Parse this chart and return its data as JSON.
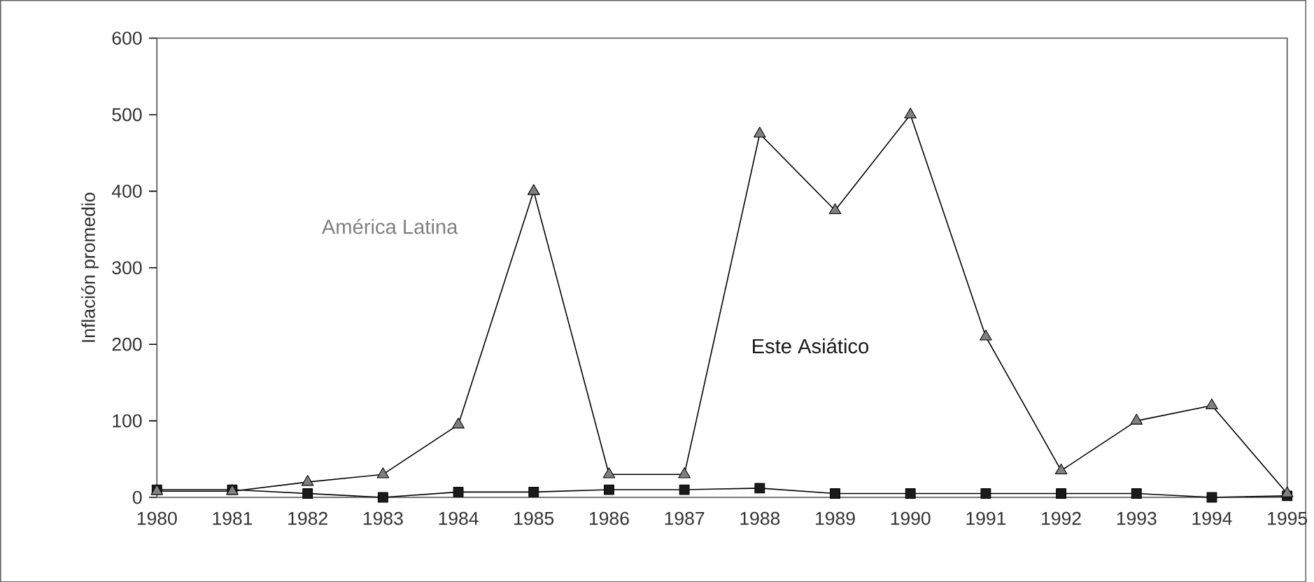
{
  "chart_data": {
    "type": "line",
    "ylabel": "Inflación promedio",
    "categories": [
      "1980",
      "1981",
      "1982",
      "1983",
      "1984",
      "1985",
      "1986",
      "1987",
      "1988",
      "1989",
      "1990",
      "1991",
      "1992",
      "1993",
      "1994",
      "1995"
    ],
    "ylim": [
      0,
      600
    ],
    "yticks": [
      0,
      100,
      200,
      300,
      400,
      500,
      600
    ],
    "grid": false,
    "series": [
      {
        "name": "América Latina",
        "color": "#808080",
        "marker": "triangle",
        "values": [
          8,
          8,
          20,
          30,
          95,
          400,
          30,
          30,
          475,
          375,
          500,
          210,
          35,
          100,
          120,
          5
        ]
      },
      {
        "name": "Este Asiático",
        "color": "#1a1a1a",
        "marker": "square",
        "values": [
          10,
          10,
          5,
          0,
          7,
          7,
          10,
          10,
          12,
          5,
          5,
          5,
          5,
          5,
          0,
          2
        ]
      }
    ]
  }
}
